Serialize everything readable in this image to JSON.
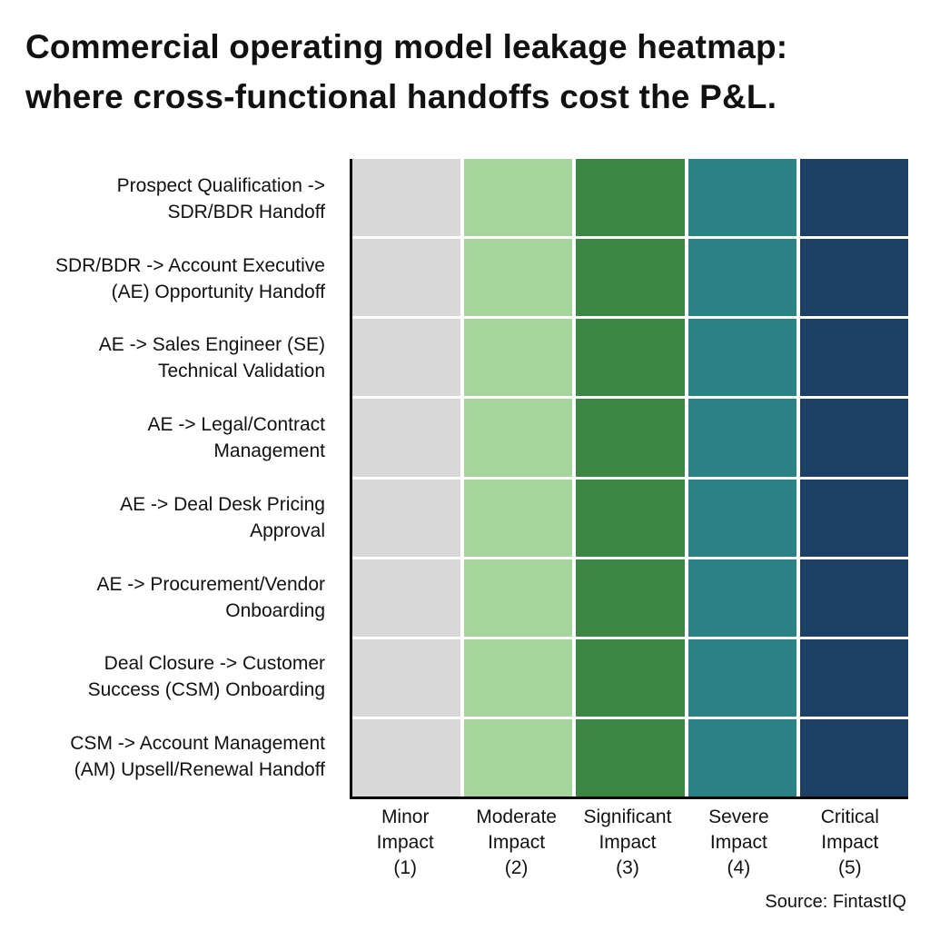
{
  "title": {
    "line1": "Commercial operating model leakage heatmap:",
    "line2": "where cross-functional handoffs cost the P&L."
  },
  "source_label": "Source: FintastIQ",
  "colors": {
    "background": "#ffffff",
    "axis_line": "#000000",
    "text": "#111111",
    "cell_gap": "#ffffff",
    "impact_scale": [
      "#d8d8d8",
      "#a5d49d",
      "#3d8744",
      "#2a8285",
      "#1d4166"
    ]
  },
  "chart_data": {
    "type": "heatmap",
    "title": "Commercial operating model leakage heatmap: where cross-functional handoffs cost the P&L.",
    "rows": [
      "Prospect Qualification -> SDR/BDR Handoff",
      "SDR/BDR -> Account Executive (AE) Opportunity Handoff",
      "AE -> Sales Engineer (SE) Technical Validation",
      "AE -> Legal/Contract Management",
      "AE -> Deal Desk Pricing Approval",
      "AE -> Procurement/Vendor Onboarding",
      "Deal Closure -> Customer Success (CSM) Onboarding",
      "CSM -> Account Management (AM) Upsell/Renewal Handoff"
    ],
    "row_label_lines": [
      [
        "Prospect Qualification ->",
        "SDR/BDR Handoff"
      ],
      [
        "SDR/BDR -> Account Executive",
        "(AE) Opportunity Handoff"
      ],
      [
        "AE -> Sales Engineer (SE)",
        "Technical Validation"
      ],
      [
        "AE -> Legal/Contract",
        "Management"
      ],
      [
        "AE -> Deal Desk Pricing",
        "Approval"
      ],
      [
        "AE -> Procurement/Vendor",
        "Onboarding"
      ],
      [
        "Deal Closure -> Customer",
        "Success (CSM) Onboarding"
      ],
      [
        "CSM -> Account Management",
        "(AM) Upsell/Renewal Handoff"
      ]
    ],
    "columns": [
      "Minor Impact (1)",
      "Moderate Impact (2)",
      "Significant Impact (3)",
      "Severe Impact (4)",
      "Critical Impact (5)"
    ],
    "column_label_lines": [
      [
        "Minor",
        "Impact",
        "(1)"
      ],
      [
        "Moderate",
        "Impact",
        "(2)"
      ],
      [
        "Significant",
        "Impact",
        "(3)"
      ],
      [
        "Severe",
        "Impact",
        "(4)"
      ],
      [
        "Critical",
        "Impact",
        "(5)"
      ]
    ],
    "values": [
      [
        1,
        2,
        3,
        4,
        5
      ],
      [
        1,
        2,
        3,
        4,
        5
      ],
      [
        1,
        2,
        3,
        4,
        5
      ],
      [
        1,
        2,
        3,
        4,
        5
      ],
      [
        1,
        2,
        3,
        4,
        5
      ],
      [
        1,
        2,
        3,
        4,
        5
      ],
      [
        1,
        2,
        3,
        4,
        5
      ],
      [
        1,
        2,
        3,
        4,
        5
      ]
    ],
    "value_scale": {
      "min": 1,
      "max": 5
    },
    "cell_colors_by_column": [
      "#d8d8d8",
      "#a5d49d",
      "#3d8744",
      "#2a8285",
      "#1d4166"
    ],
    "grid": true,
    "legend_position": "none",
    "source": "Source: FintastIQ"
  }
}
